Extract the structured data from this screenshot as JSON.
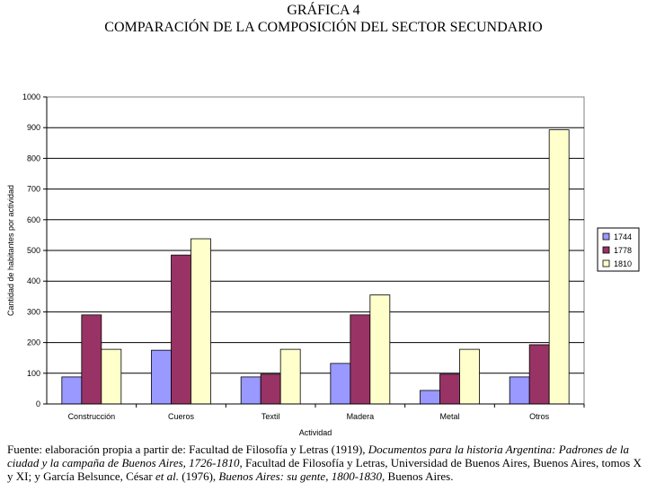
{
  "header": {
    "title_line1": "GRÁFICA 4",
    "title_line2": "COMPARACIÓN DE LA COMPOSICIÓN DEL SECTOR SECUNDARIO"
  },
  "chart_data": {
    "type": "bar",
    "categories": [
      "Construcción",
      "Cueros",
      "Textil",
      "Madera",
      "Metal",
      "Otros"
    ],
    "series": [
      {
        "name": "1744",
        "color": "#9999ff",
        "values": [
          88,
          175,
          88,
          132,
          44,
          88
        ]
      },
      {
        "name": "1778",
        "color": "#993366",
        "values": [
          290,
          485,
          97,
          290,
          97,
          193
        ]
      },
      {
        "name": "1810",
        "color": "#ffffcc",
        "values": [
          178,
          538,
          178,
          355,
          178,
          893
        ]
      }
    ],
    "xlabel": "Actividad",
    "ylabel": "Cantidad de habitantes por actividad",
    "ylim": [
      0,
      1000
    ],
    "yticks": [
      0,
      100,
      200,
      300,
      400,
      500,
      600,
      700,
      800,
      900,
      1000
    ],
    "legend_position": "right",
    "grid": true
  },
  "source": {
    "p1": "Fuente: elaboración propia a partir de: Facultad de Filosofía y Letras (1919),  ",
    "i1": "Documentos para la historia Argentina: Padrones de la ciudad y la campaña de Buenos Aires, 1726-1810",
    "p2": ", Facultad de Filosofía y Letras, Universidad de Buenos Aires, Buenos Aires, tomos X y XI; y García Belsunce, César ",
    "i2": "et al.",
    "p3": " (1976), ",
    "i3": "Buenos Aires: su gente, 1800-1830",
    "p4": ", Buenos Aires."
  }
}
